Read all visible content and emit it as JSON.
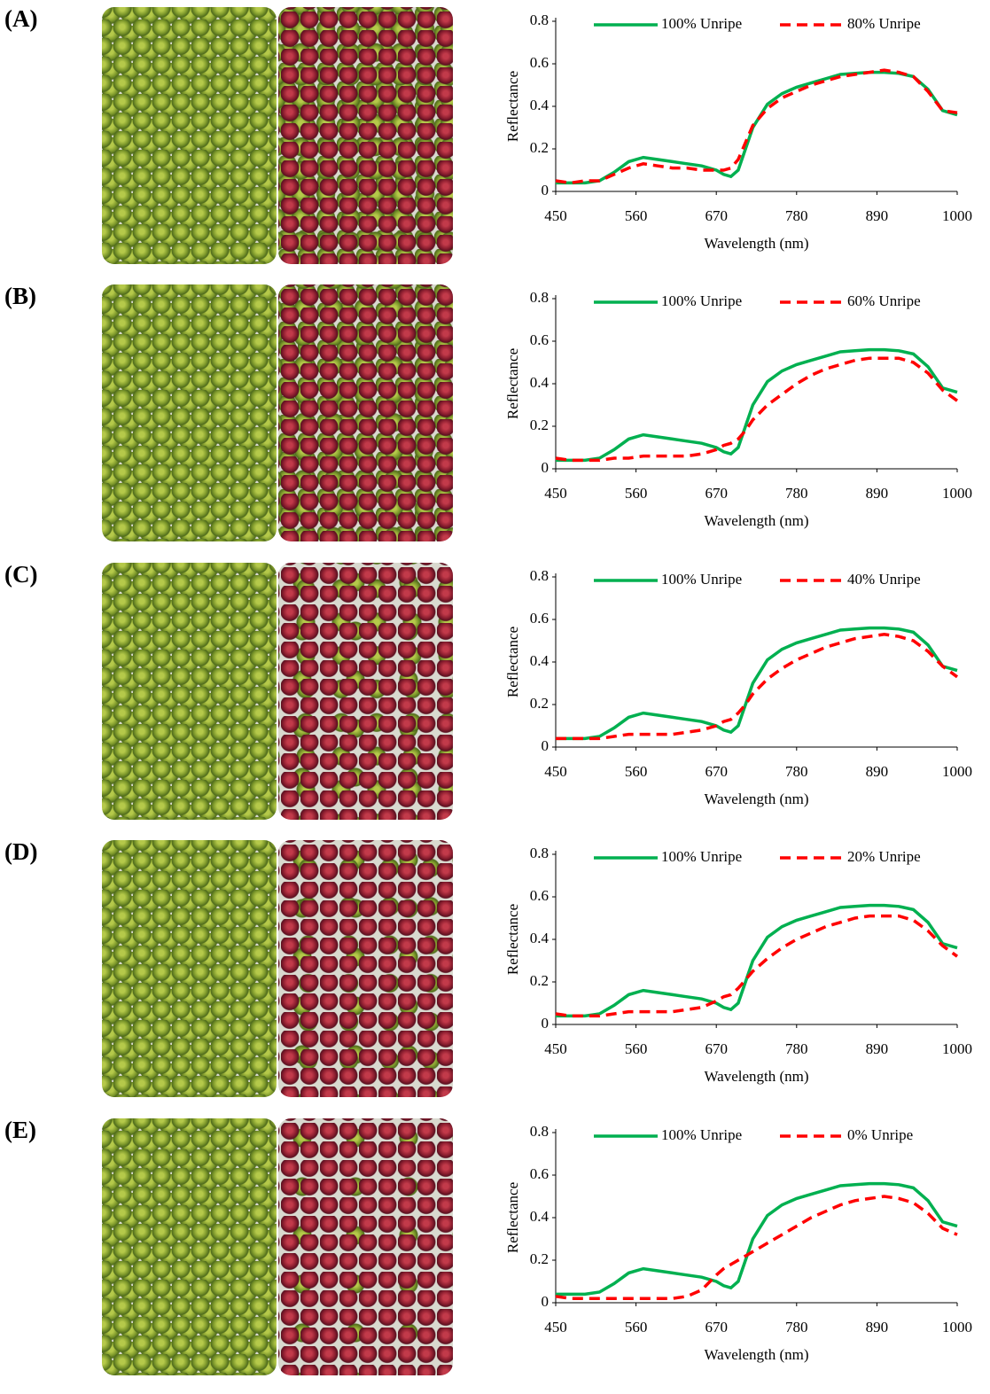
{
  "chart_data": [
    {
      "type": "line",
      "panel": "(A)",
      "xlabel": "Wavelength (nm)",
      "ylabel": "Reflectance",
      "x": [
        450,
        470,
        490,
        510,
        530,
        550,
        570,
        590,
        610,
        630,
        650,
        670,
        680,
        690,
        700,
        710,
        720,
        740,
        760,
        780,
        800,
        820,
        840,
        860,
        880,
        900,
        920,
        940,
        960,
        980,
        1000
      ],
      "series": [
        {
          "name": "100% Unripe",
          "color": "#00b050",
          "dash": "solid",
          "values": [
            0.04,
            0.04,
            0.04,
            0.05,
            0.09,
            0.14,
            0.16,
            0.15,
            0.14,
            0.13,
            0.12,
            0.1,
            0.08,
            0.07,
            0.1,
            0.2,
            0.3,
            0.41,
            0.46,
            0.49,
            0.51,
            0.53,
            0.55,
            0.555,
            0.56,
            0.56,
            0.555,
            0.54,
            0.48,
            0.38,
            0.36
          ]
        },
        {
          "name": "80% Unripe",
          "color": "#ff0000",
          "dash": "dashed",
          "values": [
            0.05,
            0.04,
            0.05,
            0.05,
            0.08,
            0.11,
            0.13,
            0.12,
            0.11,
            0.11,
            0.1,
            0.1,
            0.1,
            0.11,
            0.15,
            0.23,
            0.31,
            0.39,
            0.44,
            0.47,
            0.5,
            0.52,
            0.54,
            0.55,
            0.56,
            0.57,
            0.56,
            0.54,
            0.47,
            0.38,
            0.37
          ]
        }
      ],
      "xlim": [
        450,
        1000
      ],
      "xticks": [
        450,
        560,
        670,
        780,
        890,
        1000
      ],
      "ylim": [
        0,
        0.8
      ],
      "yticks": [
        0,
        0.2,
        0.4,
        0.6,
        0.8
      ]
    },
    {
      "type": "line",
      "panel": "(B)",
      "xlabel": "Wavelength (nm)",
      "ylabel": "Reflectance",
      "x": [
        450,
        470,
        490,
        510,
        530,
        550,
        570,
        590,
        610,
        630,
        650,
        670,
        680,
        690,
        700,
        710,
        720,
        740,
        760,
        780,
        800,
        820,
        840,
        860,
        880,
        900,
        920,
        940,
        960,
        980,
        1000
      ],
      "series": [
        {
          "name": "100% Unripe",
          "color": "#00b050",
          "dash": "solid",
          "values": [
            0.04,
            0.04,
            0.04,
            0.05,
            0.09,
            0.14,
            0.16,
            0.15,
            0.14,
            0.13,
            0.12,
            0.1,
            0.08,
            0.07,
            0.1,
            0.2,
            0.3,
            0.41,
            0.46,
            0.49,
            0.51,
            0.53,
            0.55,
            0.555,
            0.56,
            0.56,
            0.555,
            0.54,
            0.48,
            0.38,
            0.36
          ]
        },
        {
          "name": "60% Unripe",
          "color": "#ff0000",
          "dash": "dashed",
          "values": [
            0.05,
            0.04,
            0.04,
            0.04,
            0.05,
            0.05,
            0.06,
            0.06,
            0.06,
            0.06,
            0.07,
            0.09,
            0.11,
            0.12,
            0.14,
            0.18,
            0.23,
            0.3,
            0.35,
            0.4,
            0.44,
            0.47,
            0.49,
            0.51,
            0.52,
            0.52,
            0.52,
            0.5,
            0.45,
            0.37,
            0.32
          ]
        }
      ],
      "xlim": [
        450,
        1000
      ],
      "xticks": [
        450,
        560,
        670,
        780,
        890,
        1000
      ],
      "ylim": [
        0,
        0.8
      ],
      "yticks": [
        0,
        0.2,
        0.4,
        0.6,
        0.8
      ]
    },
    {
      "type": "line",
      "panel": "(C)",
      "xlabel": "Wavelength (nm)",
      "ylabel": "Reflectance",
      "x": [
        450,
        470,
        490,
        510,
        530,
        550,
        570,
        590,
        610,
        630,
        650,
        670,
        680,
        690,
        700,
        710,
        720,
        740,
        760,
        780,
        800,
        820,
        840,
        860,
        880,
        900,
        920,
        940,
        960,
        980,
        1000
      ],
      "series": [
        {
          "name": "100% Unripe",
          "color": "#00b050",
          "dash": "solid",
          "values": [
            0.04,
            0.04,
            0.04,
            0.05,
            0.09,
            0.14,
            0.16,
            0.15,
            0.14,
            0.13,
            0.12,
            0.1,
            0.08,
            0.07,
            0.1,
            0.2,
            0.3,
            0.41,
            0.46,
            0.49,
            0.51,
            0.53,
            0.55,
            0.555,
            0.56,
            0.56,
            0.555,
            0.54,
            0.48,
            0.38,
            0.36
          ]
        },
        {
          "name": "40% Unripe",
          "color": "#ff0000",
          "dash": "dashed",
          "values": [
            0.04,
            0.04,
            0.04,
            0.04,
            0.05,
            0.06,
            0.06,
            0.06,
            0.06,
            0.07,
            0.08,
            0.1,
            0.12,
            0.13,
            0.16,
            0.2,
            0.25,
            0.32,
            0.37,
            0.41,
            0.44,
            0.47,
            0.49,
            0.51,
            0.52,
            0.53,
            0.52,
            0.5,
            0.45,
            0.38,
            0.33
          ]
        }
      ],
      "xlim": [
        450,
        1000
      ],
      "xticks": [
        450,
        560,
        670,
        780,
        890,
        1000
      ],
      "ylim": [
        0,
        0.8
      ],
      "yticks": [
        0,
        0.2,
        0.4,
        0.6,
        0.8
      ]
    },
    {
      "type": "line",
      "panel": "(D)",
      "xlabel": "Wavelength (nm)",
      "ylabel": "Reflectance",
      "x": [
        450,
        470,
        490,
        510,
        530,
        550,
        570,
        590,
        610,
        630,
        650,
        670,
        680,
        690,
        700,
        710,
        720,
        740,
        760,
        780,
        800,
        820,
        840,
        860,
        880,
        900,
        920,
        940,
        960,
        980,
        1000
      ],
      "series": [
        {
          "name": "100% Unripe",
          "color": "#00b050",
          "dash": "solid",
          "values": [
            0.04,
            0.04,
            0.04,
            0.05,
            0.09,
            0.14,
            0.16,
            0.15,
            0.14,
            0.13,
            0.12,
            0.1,
            0.08,
            0.07,
            0.1,
            0.2,
            0.3,
            0.41,
            0.46,
            0.49,
            0.51,
            0.53,
            0.55,
            0.555,
            0.56,
            0.56,
            0.555,
            0.54,
            0.48,
            0.38,
            0.36
          ]
        },
        {
          "name": "20% Unripe",
          "color": "#ff0000",
          "dash": "dashed",
          "values": [
            0.05,
            0.04,
            0.04,
            0.04,
            0.05,
            0.06,
            0.06,
            0.06,
            0.06,
            0.07,
            0.08,
            0.11,
            0.13,
            0.14,
            0.17,
            0.21,
            0.25,
            0.31,
            0.36,
            0.4,
            0.43,
            0.46,
            0.48,
            0.5,
            0.51,
            0.51,
            0.51,
            0.49,
            0.44,
            0.37,
            0.32
          ]
        }
      ],
      "xlim": [
        450,
        1000
      ],
      "xticks": [
        450,
        560,
        670,
        780,
        890,
        1000
      ],
      "ylim": [
        0,
        0.8
      ],
      "yticks": [
        0,
        0.2,
        0.4,
        0.6,
        0.8
      ]
    },
    {
      "type": "line",
      "panel": "(E)",
      "xlabel": "Wavelength (nm)",
      "ylabel": "Reflectance",
      "x": [
        450,
        470,
        490,
        510,
        530,
        550,
        570,
        590,
        610,
        630,
        650,
        670,
        680,
        690,
        700,
        710,
        720,
        740,
        760,
        780,
        800,
        820,
        840,
        860,
        880,
        900,
        920,
        940,
        960,
        980,
        1000
      ],
      "series": [
        {
          "name": "100% Unripe",
          "color": "#00b050",
          "dash": "solid",
          "values": [
            0.04,
            0.04,
            0.04,
            0.05,
            0.09,
            0.14,
            0.16,
            0.15,
            0.14,
            0.13,
            0.12,
            0.1,
            0.08,
            0.07,
            0.1,
            0.2,
            0.3,
            0.41,
            0.46,
            0.49,
            0.51,
            0.53,
            0.55,
            0.555,
            0.56,
            0.56,
            0.555,
            0.54,
            0.48,
            0.38,
            0.36
          ]
        },
        {
          "name": "0% Unripe",
          "color": "#ff0000",
          "dash": "dashed",
          "values": [
            0.03,
            0.02,
            0.02,
            0.02,
            0.02,
            0.02,
            0.02,
            0.02,
            0.02,
            0.03,
            0.06,
            0.13,
            0.16,
            0.18,
            0.2,
            0.22,
            0.24,
            0.28,
            0.32,
            0.36,
            0.4,
            0.43,
            0.46,
            0.48,
            0.49,
            0.5,
            0.49,
            0.47,
            0.42,
            0.35,
            0.32
          ]
        }
      ],
      "xlim": [
        450,
        1000
      ],
      "xticks": [
        450,
        560,
        670,
        780,
        890,
        1000
      ],
      "ylim": [
        0,
        0.8
      ],
      "yticks": [
        0,
        0.2,
        0.4,
        0.6,
        0.8
      ]
    }
  ]
}
